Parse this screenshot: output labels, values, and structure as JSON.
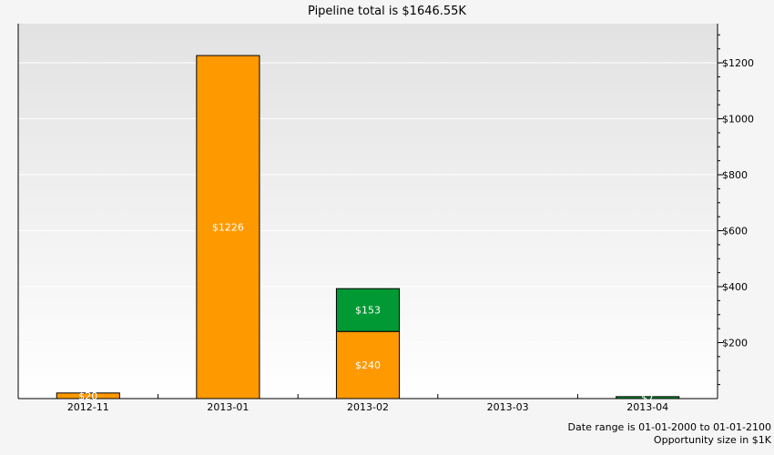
{
  "chart_data": {
    "type": "bar",
    "stacked": true,
    "title": "Pipeline total is $1646.55K",
    "categories": [
      "2012-11",
      "2013-01",
      "2013-02",
      "2013-03",
      "2013-04"
    ],
    "series": [
      {
        "color": "#ff9900",
        "values": [
          20,
          1226,
          240,
          0,
          0
        ]
      },
      {
        "color": "#009933",
        "values": [
          0,
          0,
          153,
          0,
          7
        ]
      }
    ],
    "bar_labels": [
      [
        "$20",
        "$1226",
        "$240",
        "",
        ""
      ],
      [
        "",
        "",
        "$153",
        "",
        "$7"
      ]
    ],
    "y_ticks": [
      200,
      400,
      600,
      800,
      1000,
      1200
    ],
    "y_tick_labels": [
      "$200",
      "$400",
      "$600",
      "$800",
      "$1000",
      "$1200"
    ],
    "ylim": [
      0,
      1340
    ],
    "y_axis_position": "right",
    "grid": true,
    "xlabel": "",
    "ylabel": ""
  },
  "footer": {
    "date_range": "Date range is 01-01-2000 to 01-01-2100",
    "opportunity_size": "Opportunity size in $1K"
  }
}
